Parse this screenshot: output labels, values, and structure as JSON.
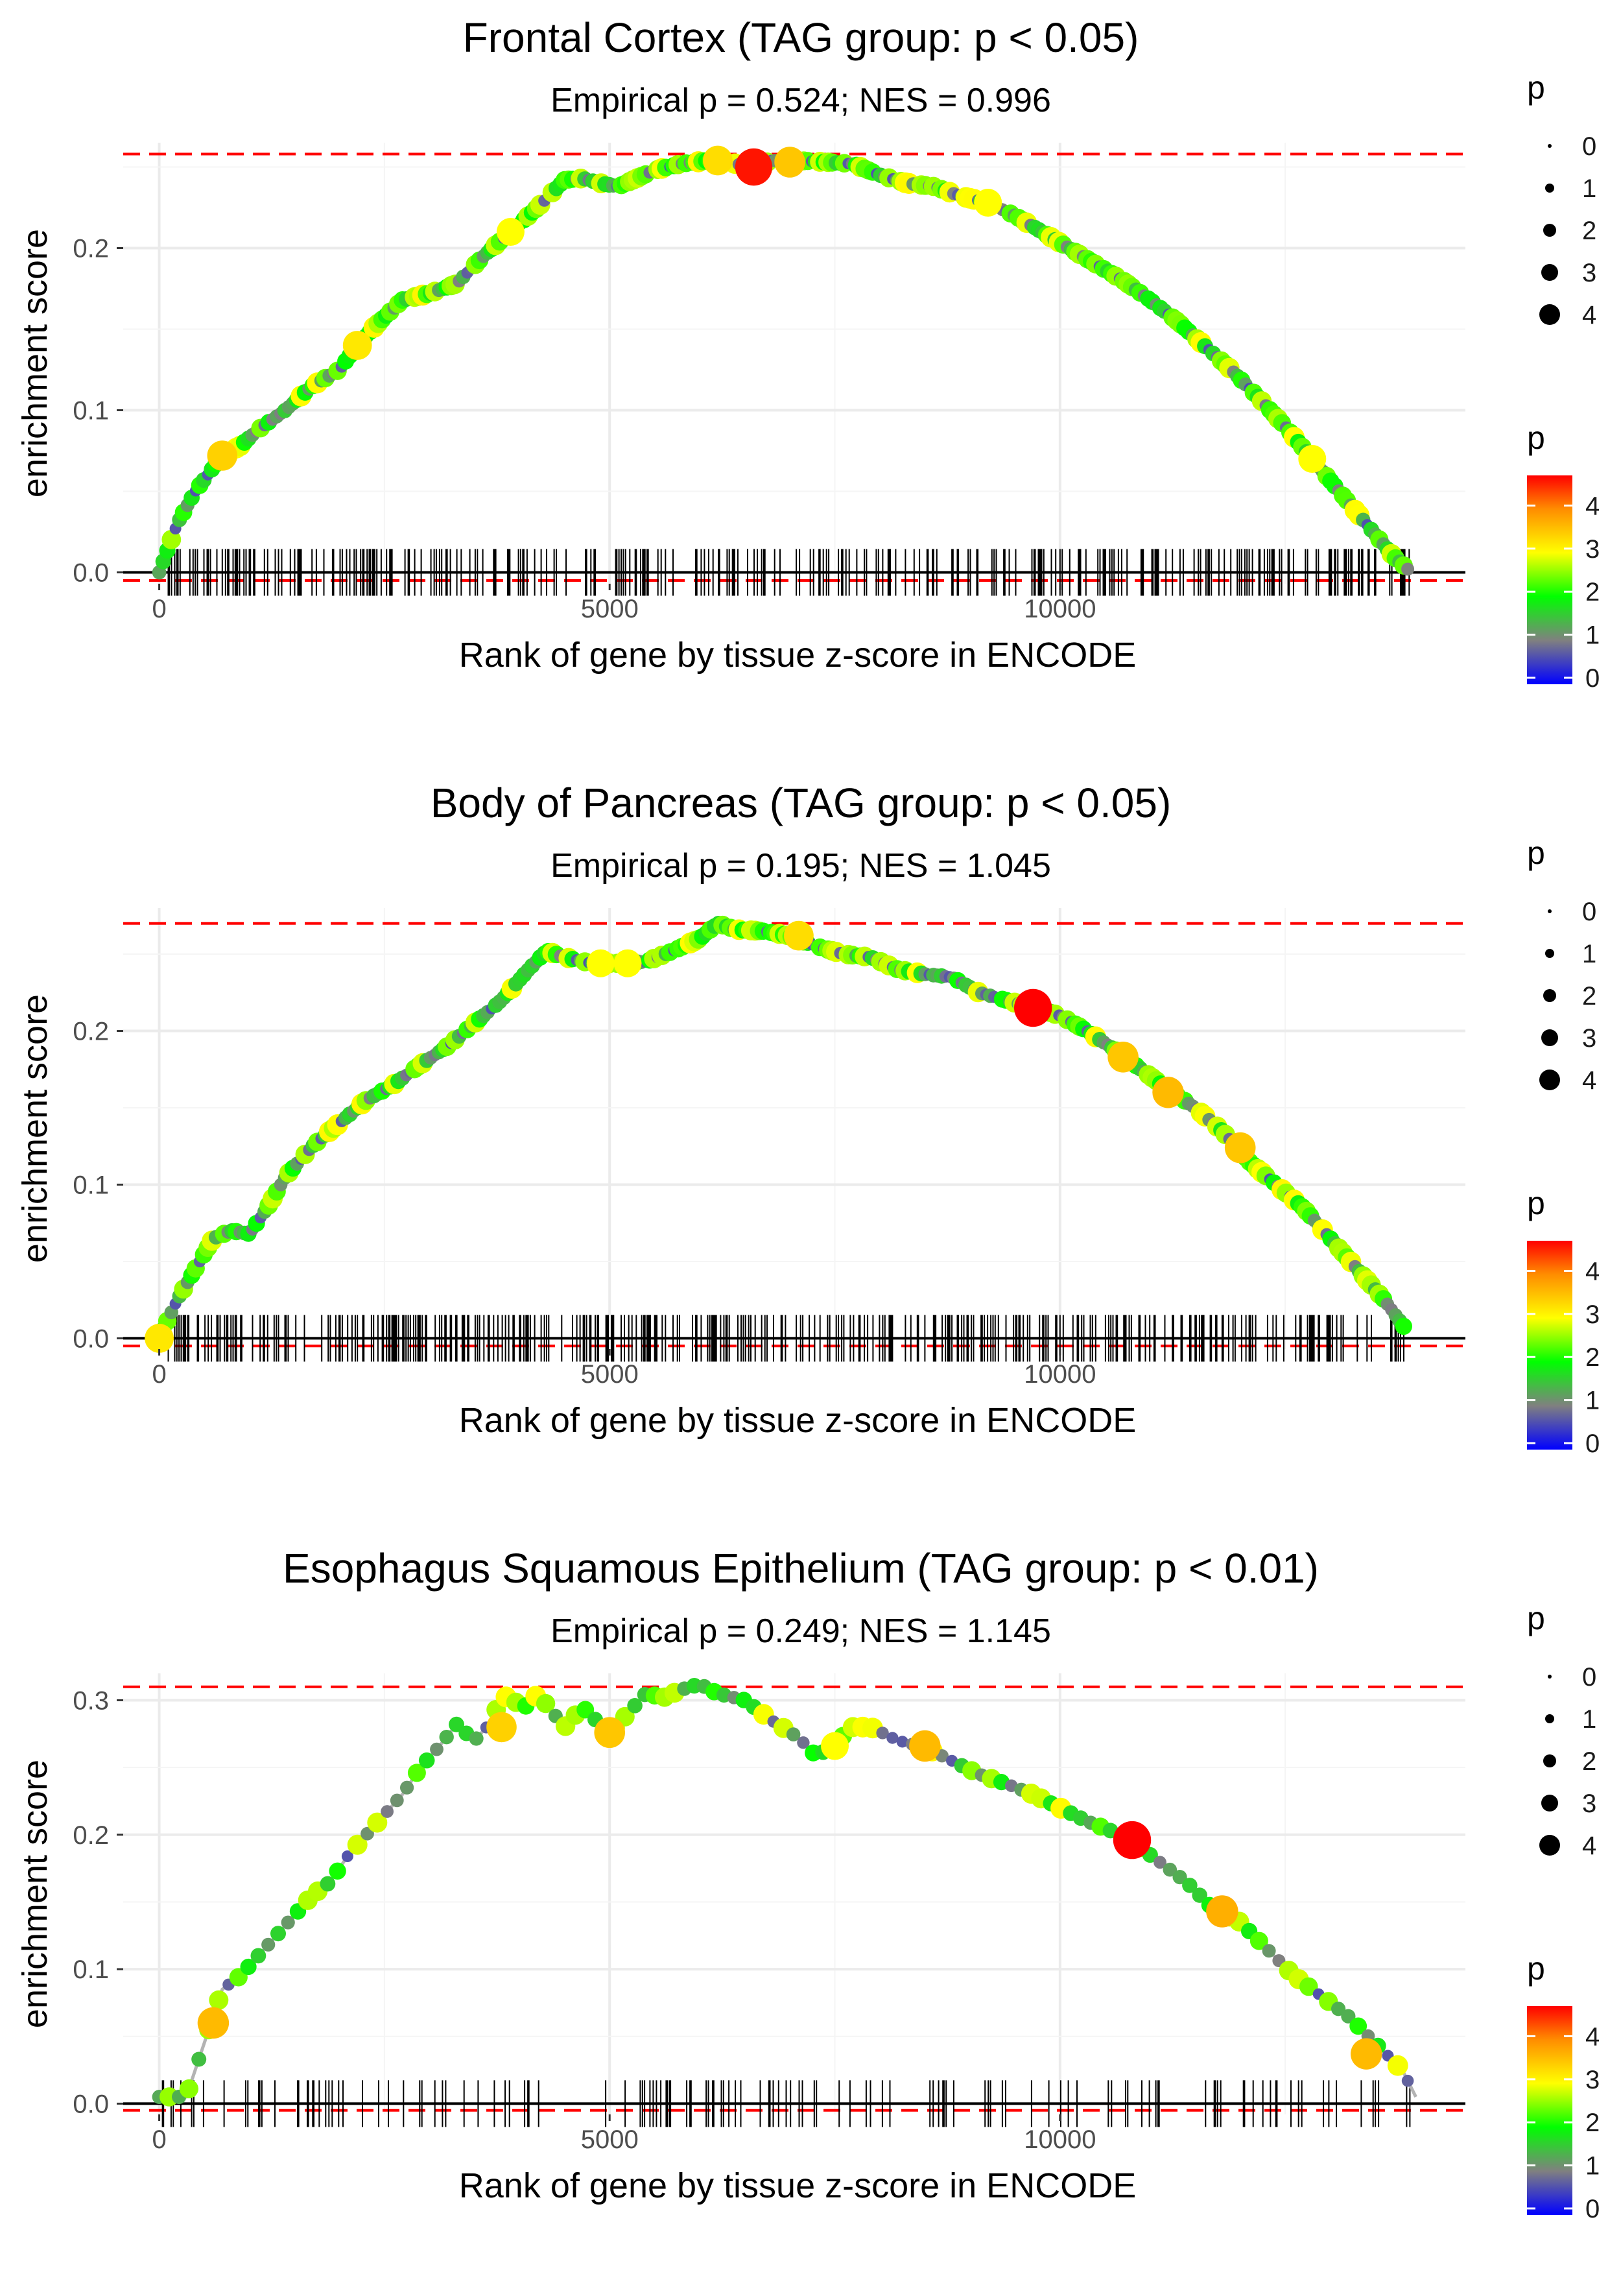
{
  "chart_data": [
    {
      "type": "line",
      "title": "Frontal Cortex (TAG group: p < 0.05)",
      "subtitle": "Empirical p = 0.524; NES = 0.996",
      "xlabel": "Rank of gene by tissue z-score in ENCODE",
      "ylabel": "enrichment score",
      "xlim": [
        -400,
        14500
      ],
      "ylim": [
        -0.007,
        0.265
      ],
      "x_ticks": [
        "0",
        "5000",
        "10000"
      ],
      "y_ticks": [
        "0.0",
        "0.1",
        "0.2"
      ],
      "max_es": 0.258,
      "min_es": -0.005,
      "curve": {
        "x": [
          0,
          200,
          400,
          700,
          900,
          1100,
          1400,
          1700,
          2000,
          2200,
          2400,
          2700,
          3000,
          3300,
          3600,
          3900,
          4200,
          4500,
          4700,
          4900,
          5100,
          5300,
          5500,
          5800,
          6100,
          6400,
          6600,
          6800,
          7100,
          7400,
          7700,
          8000,
          8300,
          8600,
          8900,
          9200,
          9500,
          9800,
          10100,
          10400,
          10700,
          11000,
          11300,
          11600,
          11900,
          12200,
          12500,
          12800,
          13100,
          13400,
          13700,
          13900
        ],
        "y": [
          0.0,
          0.03,
          0.05,
          0.072,
          0.078,
          0.088,
          0.1,
          0.115,
          0.125,
          0.14,
          0.152,
          0.168,
          0.172,
          0.178,
          0.195,
          0.21,
          0.225,
          0.242,
          0.243,
          0.24,
          0.238,
          0.243,
          0.248,
          0.252,
          0.254,
          0.252,
          0.25,
          0.254,
          0.254,
          0.253,
          0.252,
          0.245,
          0.24,
          0.238,
          0.232,
          0.228,
          0.22,
          0.21,
          0.2,
          0.19,
          0.18,
          0.168,
          0.155,
          0.14,
          0.125,
          0.108,
          0.09,
          0.07,
          0.05,
          0.03,
          0.01,
          0.0
        ]
      },
      "highlight_points": [
        {
          "x": 700,
          "y": 0.072,
          "p": 3.4
        },
        {
          "x": 2200,
          "y": 0.14,
          "p": 3.2
        },
        {
          "x": 3900,
          "y": 0.21,
          "p": 3.0
        },
        {
          "x": 6200,
          "y": 0.254,
          "p": 3.3
        },
        {
          "x": 6600,
          "y": 0.25,
          "p": 4.6
        },
        {
          "x": 7000,
          "y": 0.253,
          "p": 3.5
        },
        {
          "x": 9200,
          "y": 0.228,
          "p": 3.0
        },
        {
          "x": 12800,
          "y": 0.07,
          "p": 3.0
        }
      ],
      "rug_density": 0.8,
      "rug_seed": 11,
      "rug_min": 100,
      "rug_max": 13900
    },
    {
      "type": "line",
      "title": "Body of Pancreas (TAG group: p < 0.05)",
      "subtitle": "Empirical p = 0.195; NES = 1.045",
      "xlabel": "Rank of gene by tissue z-score in ENCODE",
      "ylabel": "enrichment score",
      "xlim": [
        -400,
        14500
      ],
      "ylim": [
        -0.007,
        0.28
      ],
      "x_ticks": [
        "0",
        "5000",
        "10000"
      ],
      "y_ticks": [
        "0.0",
        "0.1",
        "0.2"
      ],
      "max_es": 0.27,
      "min_es": -0.005,
      "curve": {
        "x": [
          0,
          200,
          400,
          600,
          800,
          1000,
          1200,
          1400,
          1700,
          2000,
          2300,
          2600,
          2900,
          3200,
          3500,
          3800,
          4100,
          4300,
          4500,
          4800,
          5100,
          5400,
          5700,
          6000,
          6200,
          6400,
          6700,
          7000,
          7300,
          7600,
          7900,
          8200,
          8500,
          8800,
          9100,
          9400,
          9700,
          10000,
          10300,
          10600,
          10900,
          11200,
          11500,
          11800,
          12100,
          12400,
          12700,
          13000,
          13300,
          13600,
          13850
        ],
        "y": [
          0.0,
          0.025,
          0.045,
          0.065,
          0.07,
          0.068,
          0.085,
          0.105,
          0.125,
          0.14,
          0.155,
          0.165,
          0.178,
          0.19,
          0.205,
          0.22,
          0.24,
          0.252,
          0.248,
          0.244,
          0.244,
          0.245,
          0.252,
          0.26,
          0.27,
          0.266,
          0.265,
          0.262,
          0.255,
          0.25,
          0.248,
          0.24,
          0.237,
          0.235,
          0.225,
          0.22,
          0.215,
          0.21,
          0.2,
          0.188,
          0.175,
          0.162,
          0.15,
          0.135,
          0.115,
          0.1,
          0.085,
          0.065,
          0.045,
          0.025,
          0.005
        ]
      },
      "highlight_points": [
        {
          "x": 0,
          "y": 0.0,
          "p": 3.2
        },
        {
          "x": 4900,
          "y": 0.244,
          "p": 3.0
        },
        {
          "x": 5200,
          "y": 0.244,
          "p": 3.0
        },
        {
          "x": 7100,
          "y": 0.262,
          "p": 3.3
        },
        {
          "x": 9700,
          "y": 0.215,
          "p": 4.7
        },
        {
          "x": 10700,
          "y": 0.183,
          "p": 3.5
        },
        {
          "x": 11200,
          "y": 0.16,
          "p": 3.6
        },
        {
          "x": 12000,
          "y": 0.124,
          "p": 3.5
        }
      ],
      "rug_density": 0.85,
      "rug_seed": 23,
      "rug_min": 100,
      "rug_max": 13850
    },
    {
      "type": "line",
      "title": "Esophagus Squamous Epithelium (TAG group: p < 0.01)",
      "subtitle": "Empirical p = 0.249; NES = 1.145",
      "xlabel": "Rank of gene by tissue z-score in ENCODE",
      "ylabel": "enrichment score",
      "xlim": [
        -400,
        14500
      ],
      "ylim": [
        -0.008,
        0.32
      ],
      "x_ticks": [
        "0",
        "5000",
        "10000"
      ],
      "y_ticks": [
        "0.0",
        "0.1",
        "0.2",
        "0.3"
      ],
      "max_es": 0.31,
      "min_es": -0.005,
      "curve": {
        "x": [
          0,
          300,
          400,
          600,
          700,
          900,
          1100,
          1300,
          1500,
          1700,
          1900,
          2100,
          2300,
          2500,
          2700,
          2900,
          3100,
          3300,
          3500,
          3700,
          3800,
          3900,
          4100,
          4200,
          4500,
          4700,
          5000,
          5200,
          5400,
          5600,
          5800,
          6000,
          6200,
          6500,
          6800,
          7100,
          7300,
          7500,
          7700,
          7900,
          8200,
          8500,
          8800,
          9100,
          9400,
          9700,
          10000,
          10300,
          10600,
          10800,
          11100,
          11400,
          11700,
          12000,
          12300,
          12600,
          12900,
          13200,
          13500,
          13800,
          13950
        ],
        "y": [
          0.005,
          0.005,
          0.025,
          0.065,
          0.085,
          0.095,
          0.11,
          0.125,
          0.14,
          0.155,
          0.165,
          0.185,
          0.2,
          0.215,
          0.23,
          0.25,
          0.265,
          0.282,
          0.27,
          0.285,
          0.305,
          0.3,
          0.295,
          0.305,
          0.28,
          0.295,
          0.275,
          0.29,
          0.305,
          0.302,
          0.308,
          0.312,
          0.305,
          0.3,
          0.285,
          0.272,
          0.258,
          0.268,
          0.28,
          0.28,
          0.27,
          0.265,
          0.255,
          0.245,
          0.238,
          0.23,
          0.22,
          0.21,
          0.202,
          0.195,
          0.18,
          0.165,
          0.145,
          0.135,
          0.115,
          0.095,
          0.08,
          0.065,
          0.045,
          0.025,
          0.005
        ]
      },
      "highlight_points": [
        {
          "x": 600,
          "y": 0.06,
          "p": 3.6
        },
        {
          "x": 3800,
          "y": 0.28,
          "p": 3.4
        },
        {
          "x": 5000,
          "y": 0.276,
          "p": 3.5
        },
        {
          "x": 7500,
          "y": 0.266,
          "p": 3.0
        },
        {
          "x": 8500,
          "y": 0.266,
          "p": 3.6
        },
        {
          "x": 10800,
          "y": 0.196,
          "p": 4.7
        },
        {
          "x": 11800,
          "y": 0.143,
          "p": 3.7
        },
        {
          "x": 13400,
          "y": 0.037,
          "p": 3.6
        }
      ],
      "rug_density": 0.32,
      "rug_seed": 37,
      "rug_min": 0,
      "rug_max": 13900
    }
  ],
  "legend": {
    "size_title": "p",
    "size_labels": [
      "0",
      "1",
      "2",
      "3",
      "4"
    ],
    "color_title": "p",
    "color_labels": [
      "4",
      "3",
      "2",
      "1",
      "0"
    ]
  },
  "colors": {
    "max_line": "#ff0000",
    "baseline": "#000000",
    "grid": "#ebebeb",
    "curve": "#b3b3b3"
  }
}
